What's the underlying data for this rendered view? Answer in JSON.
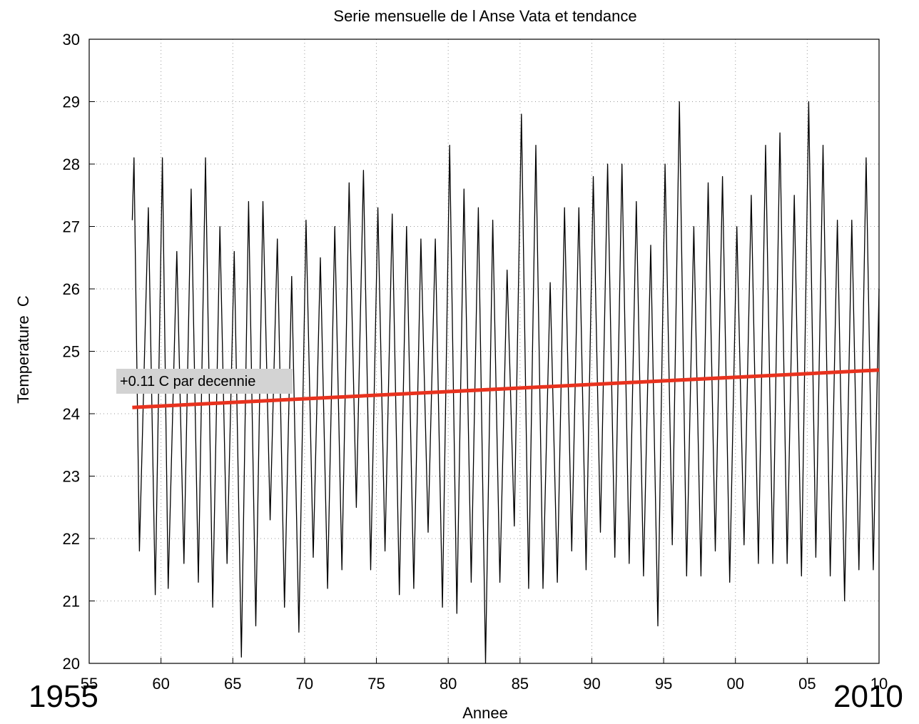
{
  "chart_data": {
    "type": "line",
    "title": "Serie mensuelle de l Anse Vata et tendance",
    "xlabel": "Annee",
    "ylabel": "Temperature  C",
    "xlim": [
      1955,
      2010
    ],
    "ylim": [
      20,
      30
    ],
    "grid": true,
    "x_ticks": [
      {
        "value": 1955,
        "label": "55"
      },
      {
        "value": 1960,
        "label": "60"
      },
      {
        "value": 1965,
        "label": "65"
      },
      {
        "value": 1970,
        "label": "70"
      },
      {
        "value": 1975,
        "label": "75"
      },
      {
        "value": 1980,
        "label": "80"
      },
      {
        "value": 1985,
        "label": "85"
      },
      {
        "value": 1990,
        "label": "90"
      },
      {
        "value": 1995,
        "label": "95"
      },
      {
        "value": 2000,
        "label": "00"
      },
      {
        "value": 2005,
        "label": "05"
      },
      {
        "value": 2010,
        "label": "10"
      }
    ],
    "y_ticks": [
      {
        "value": 20,
        "label": "20"
      },
      {
        "value": 21,
        "label": "21"
      },
      {
        "value": 22,
        "label": "22"
      },
      {
        "value": 23,
        "label": "23"
      },
      {
        "value": 24,
        "label": "24"
      },
      {
        "value": 25,
        "label": "25"
      },
      {
        "value": 26,
        "label": "26"
      },
      {
        "value": 27,
        "label": "27"
      },
      {
        "value": 28,
        "label": "28"
      },
      {
        "value": 29,
        "label": "29"
      },
      {
        "value": 30,
        "label": "30"
      }
    ],
    "series": [
      {
        "color": "#000000",
        "x": [
          1958.0,
          1958.12,
          1958.5,
          1959.12,
          1959.6,
          1960.1,
          1960.5,
          1961.1,
          1961.6,
          1962.1,
          1962.6,
          1963.1,
          1963.6,
          1964.1,
          1964.6,
          1965.1,
          1965.6,
          1966.1,
          1966.6,
          1967.1,
          1967.6,
          1968.1,
          1968.6,
          1969.1,
          1969.6,
          1970.1,
          1970.6,
          1971.1,
          1971.6,
          1972.1,
          1972.6,
          1973.1,
          1973.6,
          1974.1,
          1974.6,
          1975.1,
          1975.6,
          1976.1,
          1976.6,
          1977.1,
          1977.6,
          1978.1,
          1978.6,
          1979.1,
          1979.6,
          1980.1,
          1980.6,
          1981.1,
          1981.6,
          1982.1,
          1982.6,
          1983.1,
          1983.6,
          1984.1,
          1984.6,
          1985.1,
          1985.6,
          1986.1,
          1986.6,
          1987.1,
          1987.6,
          1988.1,
          1988.6,
          1989.1,
          1989.6,
          1990.1,
          1990.6,
          1991.1,
          1991.6,
          1992.1,
          1992.6,
          1993.1,
          1993.6,
          1994.1,
          1994.6,
          1995.1,
          1995.6,
          1996.1,
          1996.6,
          1997.1,
          1997.6,
          1998.1,
          1998.6,
          1999.1,
          1999.6,
          2000.1,
          2000.6,
          2001.1,
          2001.6,
          2002.1,
          2002.6,
          2003.1,
          2003.6,
          2004.1,
          2004.6,
          2005.1,
          2005.6,
          2006.1,
          2006.6,
          2007.1,
          2007.6,
          2008.1,
          2008.6,
          2009.1,
          2009.6,
          2010.0
        ],
        "values": [
          27.1,
          28.1,
          21.8,
          27.3,
          21.1,
          28.1,
          21.2,
          26.6,
          21.6,
          27.6,
          21.3,
          28.1,
          20.9,
          27.0,
          21.6,
          26.6,
          20.1,
          27.4,
          20.6,
          27.4,
          22.3,
          26.8,
          20.9,
          26.2,
          20.5,
          27.1,
          21.7,
          26.5,
          21.2,
          27.0,
          21.5,
          27.7,
          22.5,
          27.9,
          21.5,
          27.3,
          21.8,
          27.2,
          21.1,
          27.0,
          21.2,
          26.8,
          22.1,
          26.8,
          20.9,
          28.3,
          20.8,
          27.6,
          21.3,
          27.3,
          20.0,
          27.1,
          21.3,
          26.3,
          22.2,
          28.8,
          21.2,
          28.3,
          21.2,
          26.1,
          21.3,
          27.3,
          21.8,
          27.3,
          21.5,
          27.8,
          22.1,
          28.0,
          21.7,
          28.0,
          21.6,
          27.4,
          21.4,
          26.7,
          20.6,
          28.0,
          21.9,
          29.0,
          21.4,
          27.0,
          21.4,
          27.7,
          21.8,
          27.8,
          21.3,
          27.0,
          21.9,
          27.5,
          21.6,
          28.3,
          21.6,
          28.5,
          21.6,
          27.5,
          21.4,
          29.0,
          21.7,
          28.3,
          21.4,
          27.1,
          21.0,
          27.1,
          21.5,
          28.1,
          21.5,
          26.0
        ]
      },
      {
        "name": "+0.11 C par decennie",
        "color": "#e8321e",
        "x": [
          1958.0,
          2010.0
        ],
        "values": [
          24.1,
          24.7
        ]
      }
    ],
    "annotations": [
      {
        "text": "+0.11 C par decennie",
        "background": "#d3d3d3"
      }
    ],
    "corner_labels": {
      "left": "1955",
      "right": "2010"
    }
  }
}
